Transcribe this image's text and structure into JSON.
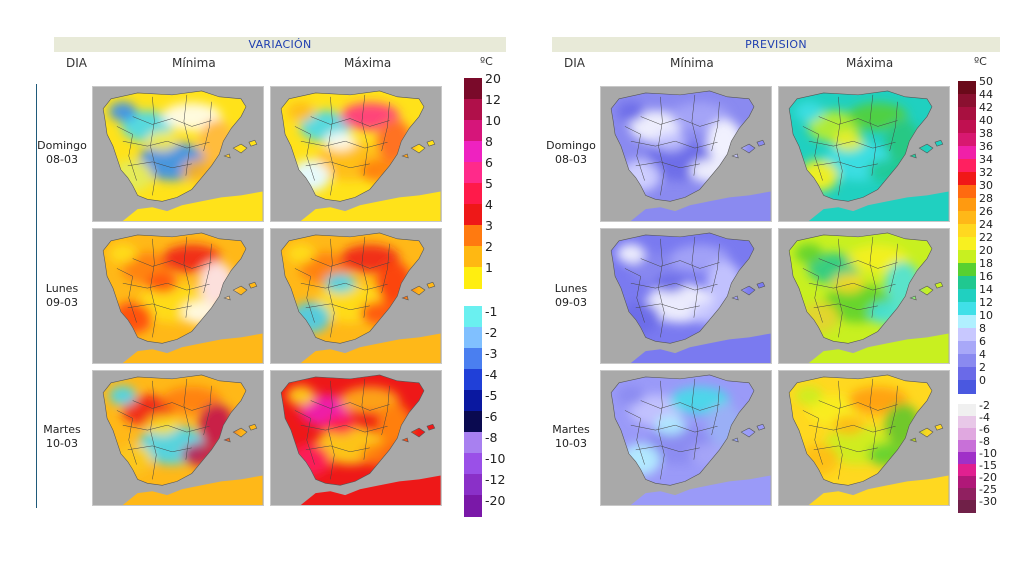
{
  "variacion": {
    "title": "VARIACIÓN",
    "col_dia": "DIA",
    "col_min": "Mínima",
    "col_max": "Máxima",
    "unit": "ºC",
    "legend_pos": [
      {
        "label": "20",
        "color": "#7a0a2a"
      },
      {
        "label": "12",
        "color": "#b0104a"
      },
      {
        "label": "10",
        "color": "#d6157a"
      },
      {
        "label": "8",
        "color": "#ee22c0"
      },
      {
        "label": "6",
        "color": "#ff2a8a"
      },
      {
        "label": "5",
        "color": "#ff1a4a"
      },
      {
        "label": "4",
        "color": "#ee1818"
      },
      {
        "label": "3",
        "color": "#ff7a10"
      },
      {
        "label": "2",
        "color": "#ffb812"
      },
      {
        "label": "1",
        "color": "#ffee10"
      }
    ],
    "legend_neg": [
      {
        "label": "-1",
        "color": "#6af0f0"
      },
      {
        "label": "-2",
        "color": "#80c0ff"
      },
      {
        "label": "-3",
        "color": "#4a7ff0"
      },
      {
        "label": "-4",
        "color": "#2040d8"
      },
      {
        "label": "-5",
        "color": "#0a18a0"
      },
      {
        "label": "-6",
        "color": "#0a0a50"
      },
      {
        "label": "-8",
        "color": "#a880f0"
      },
      {
        "label": "-10",
        "color": "#9a50e8"
      },
      {
        "label": "-12",
        "color": "#8a30c8"
      },
      {
        "label": "-20",
        "color": "#7a18a8"
      }
    ]
  },
  "prevision": {
    "title": "PREVISION",
    "col_dia": "DIA",
    "col_min": "Mínima",
    "col_max": "Máxima",
    "unit": "ºC",
    "legend_pos": [
      {
        "label": "50",
        "color": "#6a0a1a"
      },
      {
        "label": "44",
        "color": "#8a1030"
      },
      {
        "label": "42",
        "color": "#a81040"
      },
      {
        "label": "40",
        "color": "#c01050"
      },
      {
        "label": "38",
        "color": "#d81870"
      },
      {
        "label": "36",
        "color": "#f020a8"
      },
      {
        "label": "34",
        "color": "#ff2060"
      },
      {
        "label": "32",
        "color": "#f01818"
      },
      {
        "label": "30",
        "color": "#ff6a10"
      },
      {
        "label": "28",
        "color": "#ff9a10"
      },
      {
        "label": "26",
        "color": "#ffb818"
      },
      {
        "label": "24",
        "color": "#ffd820"
      },
      {
        "label": "22",
        "color": "#f8f020"
      },
      {
        "label": "20",
        "color": "#c8f020"
      },
      {
        "label": "18",
        "color": "#58d030"
      },
      {
        "label": "16",
        "color": "#20c890"
      },
      {
        "label": "14",
        "color": "#20d0c0"
      },
      {
        "label": "12",
        "color": "#40e0e8"
      },
      {
        "label": "10",
        "color": "#b0f0ff"
      },
      {
        "label": "8",
        "color": "#c8c8ff"
      },
      {
        "label": "6",
        "color": "#a8a8f8"
      },
      {
        "label": "4",
        "color": "#8a8af0"
      },
      {
        "label": "2",
        "color": "#6a6ae8"
      },
      {
        "label": "0",
        "color": "#4a58e0"
      }
    ],
    "legend_neg": [
      {
        "label": "-2",
        "color": "#f0f0f0"
      },
      {
        "label": "-4",
        "color": "#e8c8e8"
      },
      {
        "label": "-6",
        "color": "#e0a8e0"
      },
      {
        "label": "-8",
        "color": "#c870d8"
      },
      {
        "label": "-10",
        "color": "#a030c8"
      },
      {
        "label": "-15",
        "color": "#e02090"
      },
      {
        "label": "-20",
        "color": "#b01878"
      },
      {
        "label": "-25",
        "color": "#902060"
      },
      {
        "label": "-30",
        "color": "#702048"
      }
    ]
  },
  "days": [
    {
      "name": "Domingo",
      "date": "08-03"
    },
    {
      "name": "Lunes",
      "date": "09-03"
    },
    {
      "name": "Martes",
      "date": "10-03"
    }
  ],
  "maps": {
    "var_min": [
      {
        "base": "#ffe21a",
        "blobs": [
          "#3ad8ff",
          "#ffffff",
          "#2a8aff",
          "#ffee40",
          "#ffb020"
        ]
      },
      {
        "base": "#ffb818",
        "blobs": [
          "#ff7a10",
          "#ee1818",
          "#ffe21a",
          "#ff4a10",
          "#ffffff"
        ]
      },
      {
        "base": "#ffb818",
        "blobs": [
          "#ee1818",
          "#ff7a10",
          "#3ad8ff",
          "#ffe21a",
          "#c01050"
        ]
      }
    ],
    "var_max": [
      {
        "base": "#ffe21a",
        "blobs": [
          "#3ad8ff",
          "#ff2a8a",
          "#ffb818",
          "#ffffff",
          "#ff7a10"
        ]
      },
      {
        "base": "#ffb818",
        "blobs": [
          "#ff7a10",
          "#ee1818",
          "#ffe21a",
          "#3ad8ff",
          "#ff4a10"
        ]
      },
      {
        "base": "#ee1818",
        "blobs": [
          "#ee22c0",
          "#ffb818",
          "#ffe21a",
          "#ff1a4a",
          "#ff7a10"
        ]
      }
    ],
    "prev_min": [
      {
        "base": "#8a8af0",
        "blobs": [
          "#ffffff",
          "#a8a8f8",
          "#6a6ae8",
          "#c8c8ff",
          "#ffffff"
        ]
      },
      {
        "base": "#7a7af0",
        "blobs": [
          "#8a8af0",
          "#a8a8f8",
          "#ffffff",
          "#6a6ae8",
          "#c8c8ff"
        ]
      },
      {
        "base": "#9a9af8",
        "blobs": [
          "#c8c8ff",
          "#40e0e8",
          "#8a8af0",
          "#b0f0ff",
          "#a8a8f8"
        ]
      }
    ],
    "prev_max": [
      {
        "base": "#20d0c0",
        "blobs": [
          "#c8f020",
          "#58d030",
          "#40e0e8",
          "#f8f020",
          "#20c890"
        ]
      },
      {
        "base": "#c8f020",
        "blobs": [
          "#20c890",
          "#f8f020",
          "#58d030",
          "#ffd820",
          "#40e0e8"
        ]
      },
      {
        "base": "#ffd820",
        "blobs": [
          "#f8f020",
          "#ff9a10",
          "#c8f020",
          "#ffb818",
          "#58d030"
        ]
      }
    ]
  }
}
